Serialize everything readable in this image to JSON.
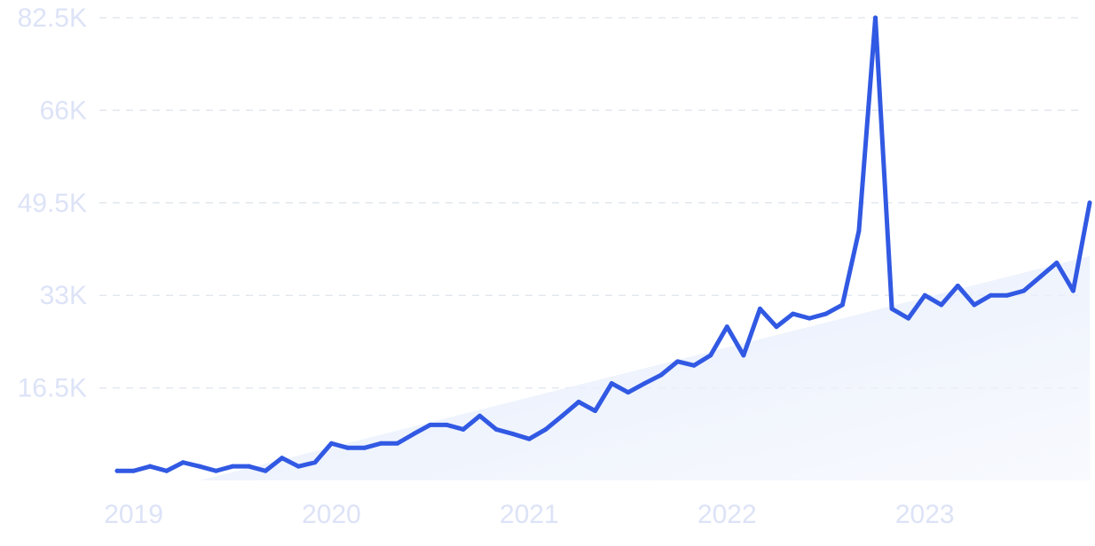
{
  "chart_data": {
    "type": "line",
    "title": "",
    "xlabel": "",
    "ylabel": "",
    "x_tick_labels": [
      "2019",
      "2020",
      "2021",
      "2022",
      "2023"
    ],
    "y_tick_labels": [
      "16.5K",
      "33K",
      "49.5K",
      "66K",
      "82.5K"
    ],
    "y_ticks": [
      16500,
      33000,
      49500,
      66000,
      82500
    ],
    "ylim": [
      0,
      82500
    ],
    "xlim": [
      "2018-12",
      "2023-11"
    ],
    "grid": "horizontal dashed",
    "trend_fill": true,
    "colors": {
      "line": "#3159e3",
      "grid": "#e3e8ef",
      "tick_text": "#dde3f7",
      "trend_fill_top": "#e6eefc"
    },
    "series": [
      {
        "x": [
          "2018-12",
          "2019-01",
          "2019-02",
          "2019-03",
          "2019-04",
          "2019-05",
          "2019-06",
          "2019-07",
          "2019-08",
          "2019-09",
          "2019-10",
          "2019-11",
          "2019-12",
          "2020-01",
          "2020-02",
          "2020-03",
          "2020-04",
          "2020-05",
          "2020-06",
          "2020-07",
          "2020-08",
          "2020-09",
          "2020-10",
          "2020-11",
          "2020-12",
          "2021-01",
          "2021-02",
          "2021-03",
          "2021-04",
          "2021-05",
          "2021-06",
          "2021-07",
          "2021-08",
          "2021-09",
          "2021-10",
          "2021-11",
          "2021-12",
          "2022-01",
          "2022-02",
          "2022-03",
          "2022-04",
          "2022-05",
          "2022-06",
          "2022-07",
          "2022-08",
          "2022-09",
          "2022-10",
          "2022-11",
          "2022-12",
          "2023-01",
          "2023-02",
          "2023-03",
          "2023-04",
          "2023-05",
          "2023-06",
          "2023-07",
          "2023-08",
          "2023-09",
          "2023-10",
          "2023-11"
        ],
        "values": [
          1700,
          1700,
          2500,
          1700,
          3200,
          2500,
          1700,
          2500,
          2500,
          1700,
          4000,
          2500,
          3200,
          6600,
          5800,
          5800,
          6600,
          6600,
          8300,
          9900,
          9900,
          9100,
          11500,
          9100,
          8300,
          7400,
          9100,
          11500,
          14000,
          12400,
          17300,
          15700,
          17300,
          18800,
          21200,
          20500,
          22300,
          27400,
          22300,
          30600,
          27400,
          29700,
          28900,
          29700,
          31300,
          44500,
          82500,
          30600,
          28900,
          33000,
          31300,
          34700,
          31300,
          33000,
          33000,
          33800,
          36300,
          38800,
          33800,
          49500
        ]
      }
    ],
    "trend": {
      "start": [
        "2019-05",
        0
      ],
      "end": [
        "2023-11",
        40000
      ]
    }
  }
}
